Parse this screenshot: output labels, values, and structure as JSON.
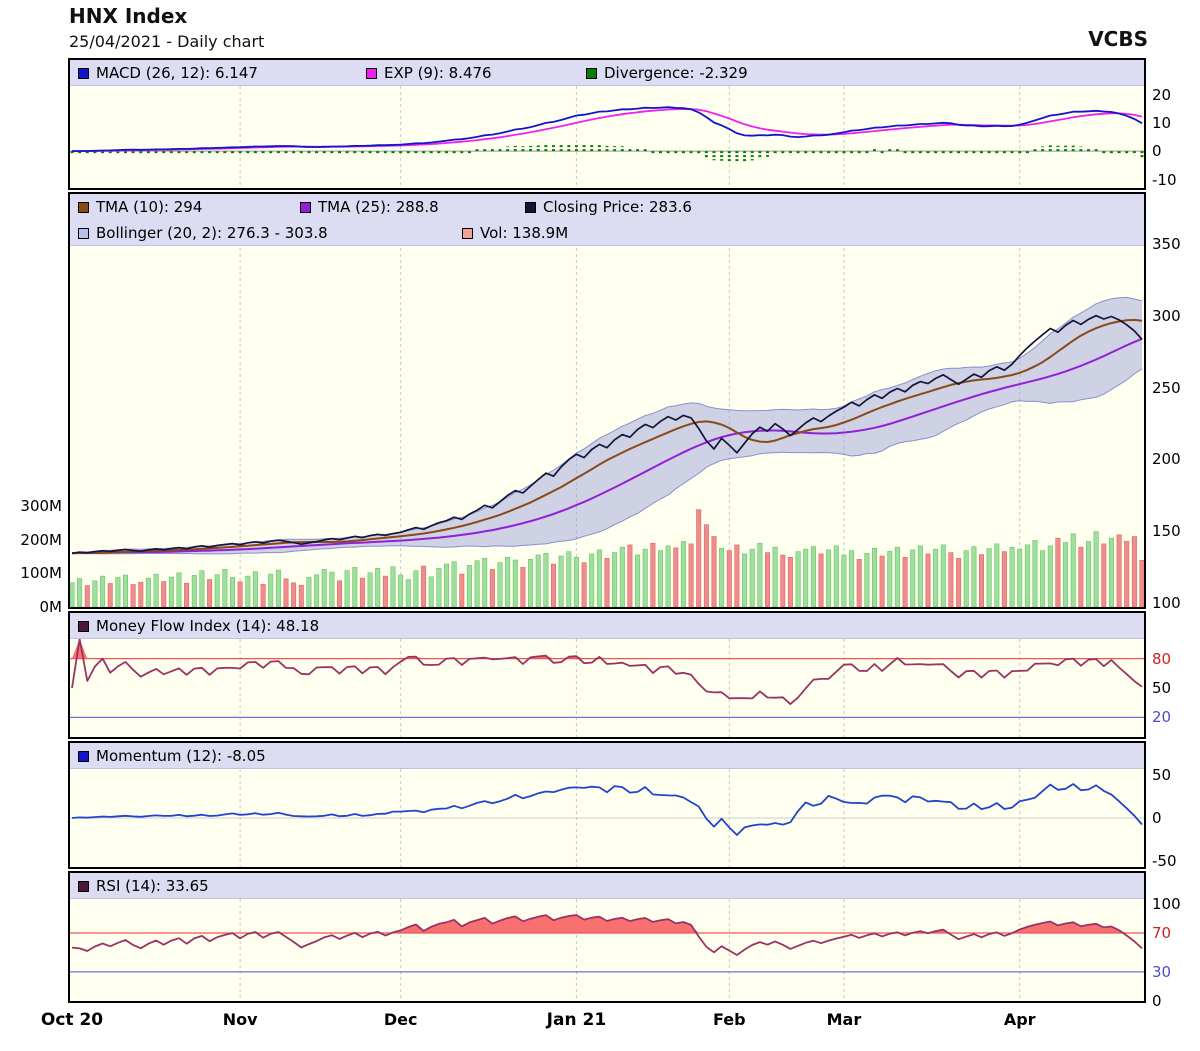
{
  "header": {
    "title": "HNX Index",
    "subtitle": "25/04/2021 - Daily chart",
    "brand": "VCBS"
  },
  "panels": {
    "macd": {
      "legend": [
        {
          "name": "macd-legend",
          "label": "MACD (26, 12): 6.147",
          "color": "#1414cc"
        },
        {
          "name": "exp-legend",
          "label": "EXP (9): 8.476",
          "color": "#ee22ee"
        },
        {
          "name": "divergence-legend",
          "label": "Divergence: -2.329",
          "color": "#067d06"
        }
      ]
    },
    "main": {
      "legend_row1": [
        {
          "name": "tma10-legend",
          "label": "TMA (10): 294",
          "color": "#8a4a16"
        },
        {
          "name": "tma25-legend",
          "label": "TMA (25): 288.8",
          "color": "#9320d6"
        },
        {
          "name": "closing-price-legend",
          "label": "Closing Price: 283.6",
          "color": "#14143c"
        }
      ],
      "legend_row2": [
        {
          "name": "bollinger-legend",
          "label": "Bollinger (20, 2): 276.3 - 303.8",
          "color": "#b9c0ea"
        },
        {
          "name": "vol-legend",
          "label": "Vol: 138.9M",
          "color": "#f2a195"
        }
      ]
    },
    "mfi": {
      "legend": [
        {
          "name": "mfi-legend",
          "label": "Money Flow Index (14): 48.18",
          "color": "#4d1538"
        }
      ]
    },
    "momentum": {
      "legend": [
        {
          "name": "momentum-legend",
          "label": "Momentum (12): -8.05",
          "color": "#1414cc"
        }
      ]
    },
    "rsi": {
      "legend": [
        {
          "name": "rsi-legend",
          "label": "RSI (14): 33.65",
          "color": "#4d1538"
        }
      ]
    }
  },
  "colors": {
    "plot_bg": "#fffff0",
    "legend_bg": "#dcdcf2",
    "macd_line": "#1414cc",
    "exp_line": "#ee22ee",
    "divergence": "#067d06",
    "tma10": "#8a4a16",
    "tma25": "#9320d6",
    "close": "#14143c",
    "bollinger_fill": "rgba(148,155,214,0.45)",
    "bollinger_edge": "rgba(120,128,200,0.85)",
    "vol_up": "#9ce09c",
    "vol_up_edge": "#6cbf6c",
    "vol_down": "#f08c8c",
    "vol_down_edge": "#d96a6a",
    "mfi_line": "#993366",
    "momentum_line": "#2244cc",
    "rsi_line": "#993366",
    "overbought_line": "#ee5555",
    "oversold_line": "#7070dd",
    "band_fill": "#f87070",
    "gridline": "#c9c9c9",
    "zero_line": "#999999"
  },
  "chart_data": {
    "type": "line",
    "title": "HNX Index",
    "date": "25/04/2021",
    "frequency": "Daily",
    "n": 141,
    "close": [
      134.5,
      135.2,
      134.8,
      135.6,
      136.2,
      135.8,
      136.5,
      137.1,
      136.4,
      135.9,
      136.8,
      137.5,
      136.9,
      137.8,
      138.4,
      137.6,
      138.9,
      139.6,
      138.8,
      139.9,
      140.6,
      141.2,
      140.4,
      141.8,
      142.5,
      141.6,
      142.9,
      143.6,
      142.8,
      141.9,
      140.8,
      141.7,
      142.6,
      143.8,
      144.6,
      143.9,
      145.1,
      146.2,
      145.4,
      146.8,
      147.6,
      146.9,
      148.2,
      149.1,
      150.8,
      152.4,
      151.2,
      153.6,
      155.8,
      157.2,
      159.6,
      158.1,
      161.8,
      164.5,
      167.9,
      166.2,
      170.4,
      174.8,
      178.2,
      176.5,
      181.3,
      185.9,
      190.4,
      188.2,
      194.6,
      199.8,
      203.5,
      201.2,
      206.8,
      210.4,
      208.1,
      213.6,
      217.2,
      215.4,
      220.8,
      224.3,
      222.1,
      226.5,
      229.8,
      227.4,
      230.6,
      228.9,
      221.5,
      212.8,
      207.2,
      214.6,
      209.8,
      204.5,
      211.2,
      217.8,
      222.4,
      219.6,
      224.8,
      221.2,
      216.5,
      220.9,
      225.4,
      228.8,
      226.3,
      230.2,
      233.6,
      236.4,
      239.8,
      237.2,
      241.6,
      244.9,
      242.5,
      246.8,
      249.4,
      247.1,
      251.6,
      254.2,
      252.8,
      256.4,
      258.9,
      255.6,
      252.3,
      255.8,
      259.4,
      257.2,
      261.8,
      264.5,
      262.1,
      266.3,
      272.4,
      277.8,
      282.5,
      286.9,
      291.2,
      288.6,
      293.4,
      296.8,
      294.1,
      297.6,
      300.1,
      297.8,
      299.6,
      297.2,
      293.8,
      289.5,
      283.6
    ],
    "volume_m": [
      72,
      85,
      64,
      78,
      92,
      70,
      88,
      95,
      67,
      74,
      86,
      98,
      76,
      89,
      102,
      71,
      94,
      108,
      82,
      96,
      112,
      88,
      75,
      92,
      105,
      68,
      98,
      110,
      84,
      72,
      65,
      88,
      96,
      112,
      104,
      78,
      108,
      118,
      86,
      102,
      115,
      92,
      120,
      95,
      82,
      108,
      122,
      90,
      115,
      128,
      135,
      98,
      124,
      138,
      145,
      112,
      132,
      148,
      140,
      118,
      142,
      155,
      160,
      128,
      152,
      165,
      148,
      132,
      158,
      170,
      145,
      162,
      178,
      185,
      155,
      172,
      190,
      168,
      182,
      176,
      195,
      188,
      290,
      245,
      210,
      175,
      168,
      185,
      158,
      172,
      190,
      162,
      178,
      155,
      148,
      165,
      172,
      180,
      158,
      170,
      182,
      155,
      168,
      142,
      160,
      175,
      152,
      166,
      178,
      148,
      170,
      182,
      158,
      172,
      185,
      162,
      145,
      168,
      180,
      156,
      174,
      188,
      165,
      178,
      172,
      185,
      198,
      168,
      182,
      205,
      192,
      218,
      178,
      195,
      225,
      188,
      205,
      215,
      196,
      210,
      139
    ],
    "indicators": {
      "macd": {
        "slow": 26,
        "fast": 12,
        "signal": 9,
        "last": 6.147,
        "signal_last": 8.476,
        "divergence_last": -2.329
      },
      "tma10": {
        "period": 10,
        "last": 294
      },
      "tma25": {
        "period": 25,
        "last": 288.8
      },
      "closing_last": 283.6,
      "bollinger": {
        "period": 20,
        "mult": 2,
        "last_lower": 276.3,
        "last_upper": 303.8
      },
      "volume_last": "138.9M",
      "mfi": {
        "period": 14,
        "last": 48.18,
        "overbought": 80,
        "oversold": 20
      },
      "momentum": {
        "period": 12,
        "last": -8.05
      },
      "rsi": {
        "period": 14,
        "last": 33.65,
        "overbought": 70,
        "oversold": 30
      }
    },
    "axes": {
      "macd": {
        "range": [
          -13,
          23
        ],
        "ticks": [
          {
            "v": 20,
            "label": "20"
          },
          {
            "v": 10,
            "label": "10"
          },
          {
            "v": 0,
            "label": "0"
          },
          {
            "v": -10,
            "label": "-10"
          }
        ]
      },
      "price": {
        "range": [
          100,
          350
        ],
        "ticks": [
          {
            "v": 350,
            "label": "350"
          },
          {
            "v": 300,
            "label": "300"
          },
          {
            "v": 250,
            "label": "250"
          },
          {
            "v": 200,
            "label": "200"
          },
          {
            "v": 150,
            "label": "150"
          },
          {
            "v": 100,
            "label": "100"
          }
        ]
      },
      "volume": {
        "ticks": [
          {
            "v": 300,
            "label": "300M"
          },
          {
            "v": 200,
            "label": "200M"
          },
          {
            "v": 100,
            "label": "100M"
          },
          {
            "v": 0,
            "label": "0M"
          }
        ]
      },
      "mfi": {
        "range": [
          0,
          100
        ],
        "ticks": [
          {
            "v": 80,
            "label": "80",
            "color": "#cc2222"
          },
          {
            "v": 50,
            "label": "50"
          },
          {
            "v": 20,
            "label": "20",
            "color": "#4a4ad0"
          }
        ]
      },
      "momentum": {
        "range": [
          -57,
          57
        ],
        "ticks": [
          {
            "v": 50,
            "label": "50"
          },
          {
            "v": 0,
            "label": "0"
          },
          {
            "v": -50,
            "label": "-50"
          }
        ]
      },
      "rsi": {
        "range": [
          0,
          100
        ],
        "ticks": [
          {
            "v": 100,
            "label": "100"
          },
          {
            "v": 70,
            "label": "70",
            "color": "#cc2222"
          },
          {
            "v": 30,
            "label": "30",
            "color": "#4a4ad0"
          },
          {
            "v": 0,
            "label": "0"
          }
        ]
      },
      "x": {
        "ticks": [
          {
            "label": "Oct 20",
            "index": 0,
            "strong": true
          },
          {
            "label": "Nov",
            "index": 22
          },
          {
            "label": "Dec",
            "index": 43
          },
          {
            "label": "Jan 21",
            "index": 66,
            "strong": true
          },
          {
            "label": "Feb",
            "index": 86
          },
          {
            "label": "Mar",
            "index": 101
          },
          {
            "label": "Apr",
            "index": 124
          }
        ]
      }
    }
  }
}
